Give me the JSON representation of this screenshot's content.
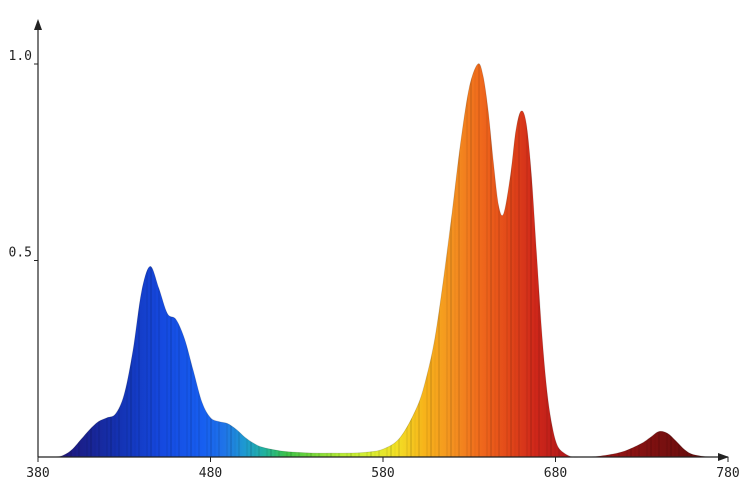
{
  "chart_data": {
    "type": "area",
    "title": "",
    "xlabel": "",
    "ylabel": "",
    "xlim": [
      380,
      780
    ],
    "ylim": [
      0,
      1.0
    ],
    "x_ticks": [
      380,
      480,
      580,
      680,
      780
    ],
    "x_tick_labels": [
      "380",
      "480",
      "580",
      "680",
      "780"
    ],
    "y_ticks": [
      0.5,
      1.0
    ],
    "y_tick_labels": [
      "0.5",
      "1.0"
    ],
    "grid": false,
    "legend": "none",
    "fill": "visible-spectrum color gradient under the curve",
    "series": [
      {
        "x": [
          380,
          390,
          395,
          400,
          405,
          410,
          415,
          420,
          425,
          430,
          435,
          440,
          445,
          450,
          455,
          460,
          465,
          470,
          475,
          480,
          485,
          490,
          495,
          500,
          505,
          510,
          520,
          530,
          540,
          550,
          560,
          570,
          580,
          590,
          600,
          605,
          610,
          615,
          620,
          625,
          630,
          635,
          638,
          641,
          644,
          647,
          650,
          654,
          657,
          660,
          663,
          666,
          669,
          672,
          675,
          678,
          681,
          685,
          690,
          695,
          700,
          710,
          720,
          730,
          735,
          740,
          745,
          750,
          755,
          760,
          770,
          780
        ],
        "y": [
          0.0,
          0.0,
          0.005,
          0.02,
          0.045,
          0.07,
          0.09,
          0.1,
          0.11,
          0.16,
          0.27,
          0.42,
          0.485,
          0.43,
          0.365,
          0.35,
          0.3,
          0.22,
          0.14,
          0.1,
          0.09,
          0.085,
          0.07,
          0.05,
          0.035,
          0.025,
          0.016,
          0.012,
          0.01,
          0.01,
          0.01,
          0.012,
          0.02,
          0.05,
          0.13,
          0.2,
          0.3,
          0.45,
          0.62,
          0.8,
          0.94,
          1.0,
          0.97,
          0.88,
          0.75,
          0.64,
          0.62,
          0.72,
          0.83,
          0.88,
          0.85,
          0.72,
          0.52,
          0.32,
          0.17,
          0.08,
          0.03,
          0.01,
          0.0,
          0.0,
          0.0,
          0.005,
          0.015,
          0.035,
          0.05,
          0.065,
          0.06,
          0.04,
          0.018,
          0.006,
          0.0,
          0.0
        ]
      }
    ]
  }
}
